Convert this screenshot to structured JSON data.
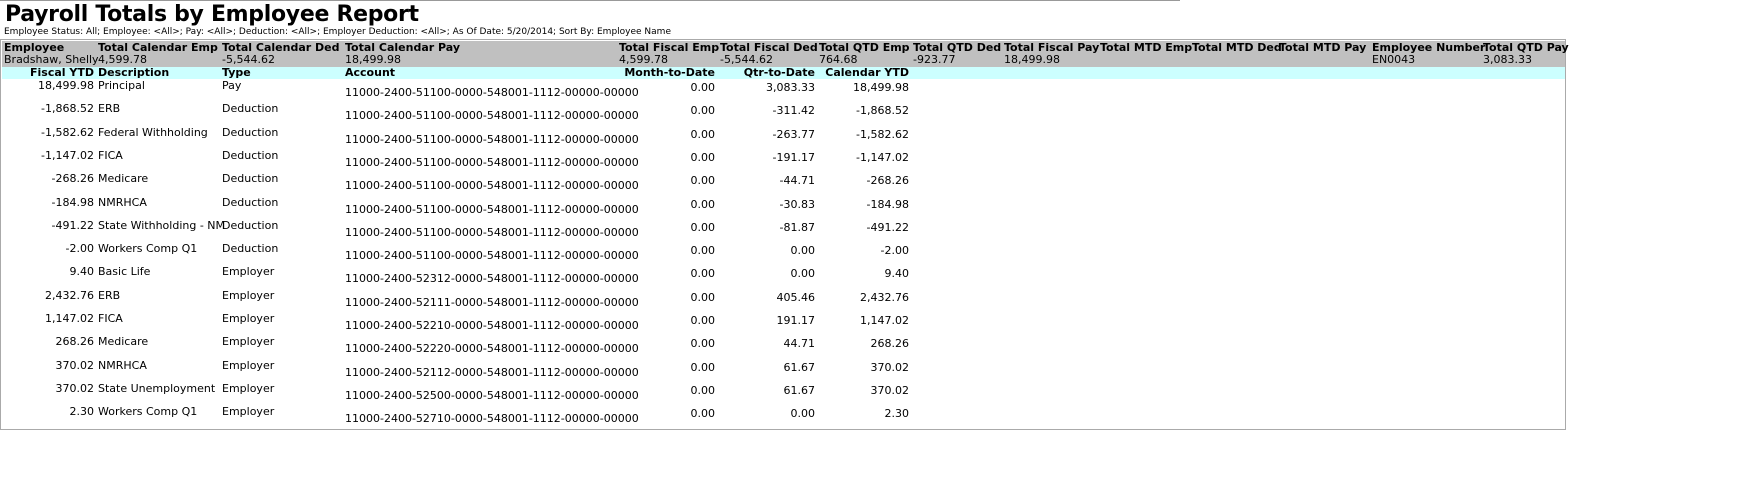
{
  "title": "Payroll Totals by Employee Report",
  "params": "Employee Status: All; Employee: <All>; Pay: <All>; Deduction: <All>; Employer Deduction: <All>; As Of Date: 5/20/2014; Sort By: Employee Name",
  "summary_headers": [
    "Employee",
    "Total Calendar  Emp",
    "Total Calendar  Ded",
    "Total Calendar Pay",
    "Total Fiscal Emp",
    "Total Fiscal Ded",
    "Total QTD Emp",
    "Total QTD Ded",
    "Total Fiscal Pay",
    "Total MTD Emp",
    "Total MTD Ded",
    "Total MTD Pay",
    "Employee Number",
    "Total QTD Pay"
  ],
  "summary_values": [
    "Bradshaw, Shelly",
    "4,599.78",
    "-5,544.62",
    "18,499.98",
    "4,599.78",
    "-5,544.62",
    "764.68",
    "-923.77",
    "18,499.98",
    "",
    "",
    "",
    "EN0043",
    "3,083.33"
  ],
  "detail_headers": [
    "Fiscal YTD",
    "Description",
    "Type",
    "Account",
    "Month-to-Date",
    "Qtr-to-Date",
    "Calendar YTD"
  ],
  "rows": [
    [
      "18,499.98",
      "Principal",
      "Pay",
      "11000-2400-51100-0000-548001-1112-00000-00000",
      "0.00",
      "3,083.33",
      "18,499.98"
    ],
    [
      "-1,868.52",
      "ERB",
      "Deduction",
      "11000-2400-51100-0000-548001-1112-00000-00000",
      "0.00",
      "-311.42",
      "-1,868.52"
    ],
    [
      "-1,582.62",
      "Federal Withholding",
      "Deduction",
      "11000-2400-51100-0000-548001-1112-00000-00000",
      "0.00",
      "-263.77",
      "-1,582.62"
    ],
    [
      "-1,147.02",
      "FICA",
      "Deduction",
      "11000-2400-51100-0000-548001-1112-00000-00000",
      "0.00",
      "-191.17",
      "-1,147.02"
    ],
    [
      "-268.26",
      "Medicare",
      "Deduction",
      "11000-2400-51100-0000-548001-1112-00000-00000",
      "0.00",
      "-44.71",
      "-268.26"
    ],
    [
      "-184.98",
      "NMRHCA",
      "Deduction",
      "11000-2400-51100-0000-548001-1112-00000-00000",
      "0.00",
      "-30.83",
      "-184.98"
    ],
    [
      "-491.22",
      "State Withholding - NM",
      "Deduction",
      "11000-2400-51100-0000-548001-1112-00000-00000",
      "0.00",
      "-81.87",
      "-491.22"
    ],
    [
      "-2.00",
      "Workers Comp Q1",
      "Deduction",
      "11000-2400-51100-0000-548001-1112-00000-00000",
      "0.00",
      "0.00",
      "-2.00"
    ],
    [
      "9.40",
      "Basic Life",
      "Employer",
      "11000-2400-52312-0000-548001-1112-00000-00000",
      "0.00",
      "0.00",
      "9.40"
    ],
    [
      "2,432.76",
      "ERB",
      "Employer",
      "11000-2400-52111-0000-548001-1112-00000-00000",
      "0.00",
      "405.46",
      "2,432.76"
    ],
    [
      "1,147.02",
      "FICA",
      "Employer",
      "11000-2400-52210-0000-548001-1112-00000-00000",
      "0.00",
      "191.17",
      "1,147.02"
    ],
    [
      "268.26",
      "Medicare",
      "Employer",
      "11000-2400-52220-0000-548001-1112-00000-00000",
      "0.00",
      "44.71",
      "268.26"
    ],
    [
      "370.02",
      "NMRHCA",
      "Employer",
      "11000-2400-52112-0000-548001-1112-00000-00000",
      "0.00",
      "61.67",
      "370.02"
    ],
    [
      "370.02",
      "State Unemployment",
      "Employer",
      "11000-2400-52500-0000-548001-1112-00000-00000",
      "0.00",
      "61.67",
      "370.02"
    ],
    [
      "2.30",
      "Workers Comp Q1",
      "Employer",
      "11000-2400-52710-0000-548001-1112-00000-00000",
      "0.00",
      "0.00",
      "2.30"
    ]
  ]
}
